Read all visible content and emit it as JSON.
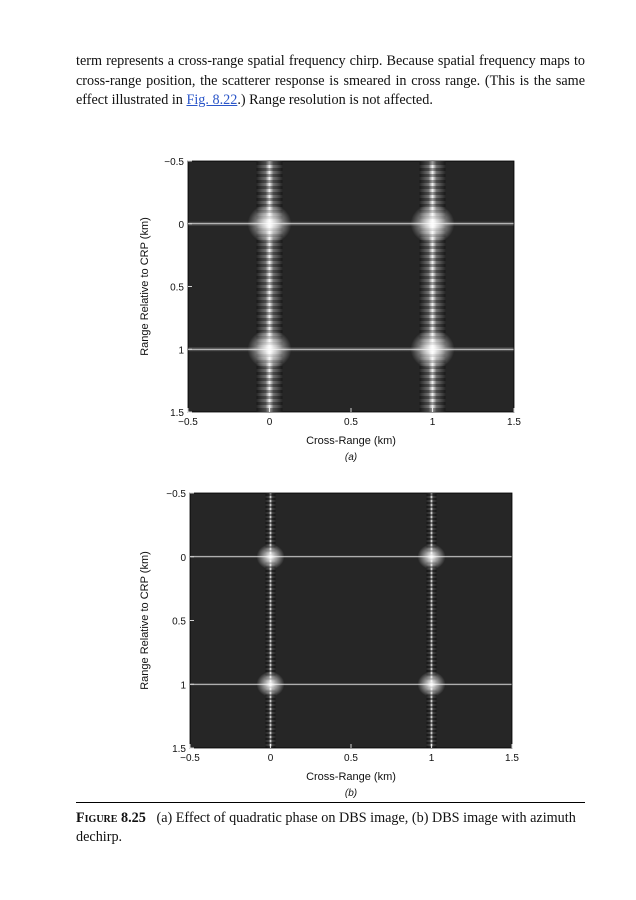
{
  "paragraph": {
    "text_before_link": "term represents a cross-range spatial frequency chirp. Because spatial frequency maps to cross-range position, the scatterer response is smeared in cross range. (This is the same effect illustrated in ",
    "link_text": "Fig. 8.22",
    "text_after_link": ".) Range resolution is not affected."
  },
  "colors": {
    "plot_bg": "#262626",
    "response": "#ffffff",
    "link": "#2a55c8"
  },
  "figure": {
    "caption_number": "Figure 8.25",
    "caption_text": "(a) Effect of quadratic phase on DBS image, (b) DBS image with azimuth dechirp."
  },
  "chart_data": [
    {
      "type": "heatmap",
      "panel_label": "(a)",
      "xlabel": "Cross-Range (km)",
      "ylabel": "Range Relative to CRP (km)",
      "xlim": [
        -0.5,
        1.5
      ],
      "ylim": [
        1.5,
        -0.5
      ],
      "xticks": [
        "−0.5",
        "0",
        "0.5",
        "1",
        "1.5"
      ],
      "yticks": [
        "−0.5",
        "0",
        "0.5",
        "1",
        "1.5"
      ],
      "scatterers": [
        {
          "x": 0,
          "y": 0
        },
        {
          "x": 1,
          "y": 0
        },
        {
          "x": 0,
          "y": 1
        },
        {
          "x": 1,
          "y": 1
        }
      ],
      "smear": "wide"
    },
    {
      "type": "heatmap",
      "panel_label": "(b)",
      "xlabel": "Cross-Range (km)",
      "ylabel": "Range Relative to CRP (km)",
      "xlim": [
        -0.5,
        1.5
      ],
      "ylim": [
        1.5,
        -0.5
      ],
      "xticks": [
        "−0.5",
        "0",
        "0.5",
        "1",
        "1.5"
      ],
      "yticks": [
        "−0.5",
        "0",
        "0.5",
        "1",
        "1.5"
      ],
      "scatterers": [
        {
          "x": 0,
          "y": 0
        },
        {
          "x": 1,
          "y": 0
        },
        {
          "x": 0,
          "y": 1
        },
        {
          "x": 1,
          "y": 1
        }
      ],
      "smear": "narrow"
    }
  ]
}
